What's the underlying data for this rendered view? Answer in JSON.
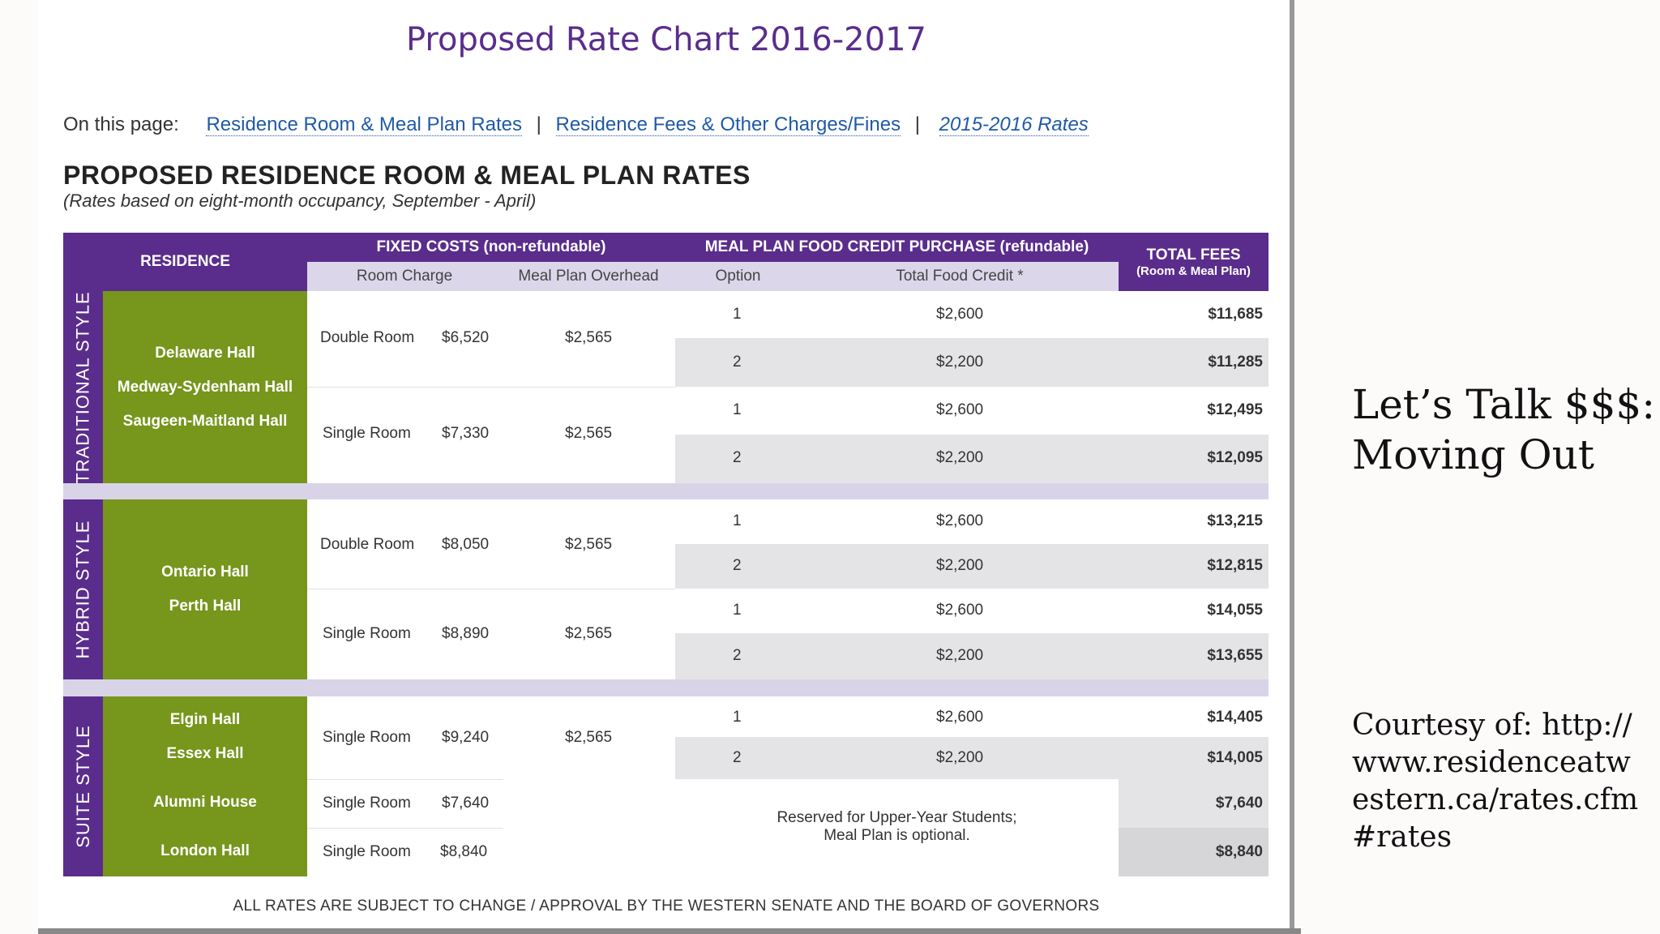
{
  "page": {
    "title": "Proposed Rate Chart 2016-2017",
    "nav_label": "On this page:",
    "nav_links": [
      "Residence Room & Meal Plan Rates",
      "Residence Fees & Other Charges/Fines",
      "2015-2016 Rates"
    ],
    "heading": "PROPOSED RESIDENCE ROOM & MEAL PLAN RATES",
    "subtitle": "(Rates based on eight-month occupancy, September - April)"
  },
  "table": {
    "headers": {
      "residence": "RESIDENCE",
      "fixed_costs": "FIXED COSTS (non-refundable)",
      "meal_plan": "MEAL PLAN FOOD CREDIT PURCHASE (refundable)",
      "total_fees": "TOTAL FEES",
      "total_fees_sub": "(Room & Meal Plan)",
      "room_charge": "Room Charge",
      "meal_overhead": "Meal Plan Overhead",
      "option": "Option",
      "food_credit": "Total Food Credit *"
    },
    "styles": [
      "TRADITIONAL STYLE",
      "HYBRID STYLE",
      "SUITE STYLE"
    ],
    "traditional": {
      "halls": [
        "Delaware Hall",
        "Medway-Sydenham Hall",
        "Saugeen-Maitland Hall"
      ],
      "rooms": [
        {
          "type": "Double Room",
          "charge": "$6,520",
          "overhead": "$2,565",
          "options": [
            {
              "opt": "1",
              "credit": "$2,600",
              "total": "$11,685"
            },
            {
              "opt": "2",
              "credit": "$2,200",
              "total": "$11,285"
            }
          ]
        },
        {
          "type": "Single Room",
          "charge": "$7,330",
          "overhead": "$2,565",
          "options": [
            {
              "opt": "1",
              "credit": "$2,600",
              "total": "$12,495"
            },
            {
              "opt": "2",
              "credit": "$2,200",
              "total": "$12,095"
            }
          ]
        }
      ]
    },
    "hybrid": {
      "halls": [
        "Ontario Hall",
        "Perth Hall"
      ],
      "rooms": [
        {
          "type": "Double Room",
          "charge": "$8,050",
          "overhead": "$2,565",
          "options": [
            {
              "opt": "1",
              "credit": "$2,600",
              "total": "$13,215"
            },
            {
              "opt": "2",
              "credit": "$2,200",
              "total": "$12,815"
            }
          ]
        },
        {
          "type": "Single Room",
          "charge": "$8,890",
          "overhead": "$2,565",
          "options": [
            {
              "opt": "1",
              "credit": "$2,600",
              "total": "$14,055"
            },
            {
              "opt": "2",
              "credit": "$2,200",
              "total": "$13,655"
            }
          ]
        }
      ]
    },
    "suite": {
      "halls": [
        "Elgin Hall",
        "Essex Hall"
      ],
      "room": {
        "type": "Single Room",
        "charge": "$9,240",
        "overhead": "$2,565",
        "options": [
          {
            "opt": "1",
            "credit": "$2,600",
            "total": "$14,405"
          },
          {
            "opt": "2",
            "credit": "$2,200",
            "total": "$14,005"
          }
        ]
      },
      "alumni": {
        "name": "Alumni House",
        "type": "Single Room",
        "charge": "$7,640",
        "total": "$7,640"
      },
      "london": {
        "name": "London Hall",
        "type": "Single Room",
        "charge": "$8,840",
        "total": "$8,840"
      },
      "reserved_line1": "Reserved for Upper-Year Students;",
      "reserved_line2": "Meal Plan is optional."
    },
    "footer": "ALL RATES ARE SUBJECT TO CHANGE / APPROVAL BY THE WESTERN SENATE AND THE BOARD OF GOVERNORS"
  },
  "slide": {
    "title_line1": "Let’s Talk $$$:",
    "title_line2": "Moving Out",
    "courtesy": "Courtesy of: http://www.residenceatwestern.ca/rates.cfm#rates"
  }
}
